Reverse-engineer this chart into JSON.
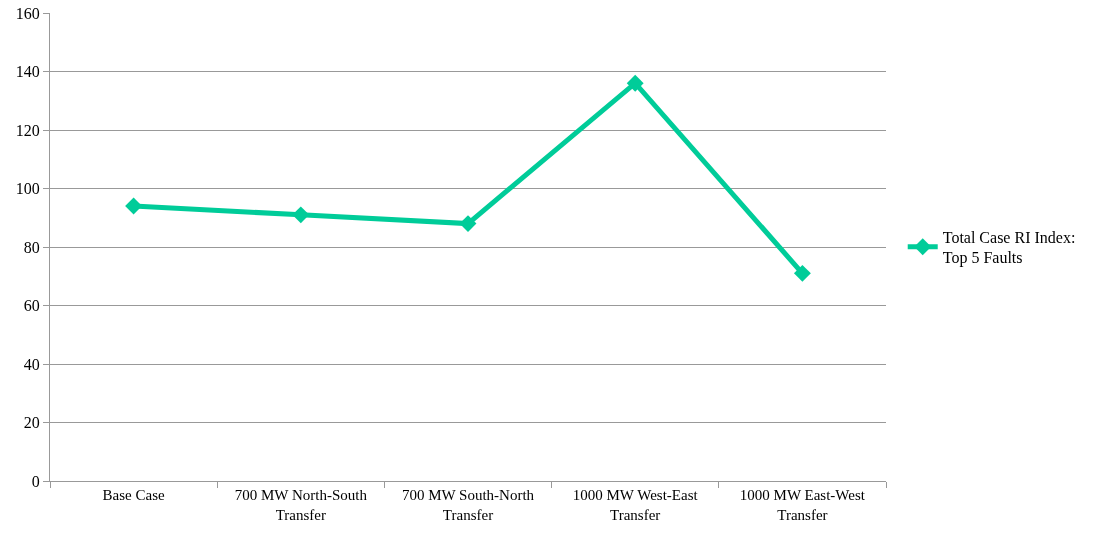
{
  "chart_data": {
    "type": "line",
    "categories": [
      "Base Case",
      "700 MW North-South Transfer",
      "700 MW South-North Transfer",
      "1000 MW West-East Transfer",
      "1000 MW East-West Transfer"
    ],
    "series": [
      {
        "name": "Total Case RI Index: Top 5 Faults",
        "color": "#00cc99",
        "values": [
          94,
          91,
          88,
          136,
          71
        ]
      }
    ],
    "ylim": [
      0,
      160
    ],
    "yticks": [
      0,
      20,
      40,
      60,
      80,
      100,
      120,
      140,
      160
    ],
    "grid": "y",
    "legend": "right",
    "marker": "diamond",
    "line_style": "solid"
  }
}
